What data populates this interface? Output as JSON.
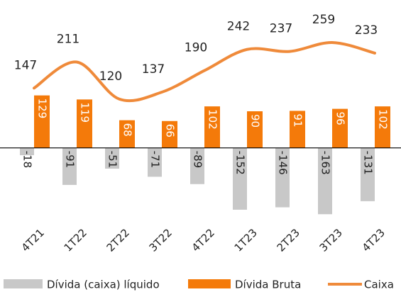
{
  "chart_data": {
    "type": "bar-line",
    "categories": [
      "4T21",
      "1T22",
      "2T22",
      "3T22",
      "4T22",
      "1T23",
      "2T23",
      "3T23",
      "4T23"
    ],
    "series": [
      {
        "name": "Dívida (caixa) líquido",
        "color": "#c8c8c8",
        "type": "bar",
        "values": [
          -18,
          -91,
          -51,
          -71,
          -89,
          -152,
          -146,
          -163,
          -131
        ]
      },
      {
        "name": "Dívida Bruta",
        "color": "#f47a0a",
        "type": "bar",
        "values": [
          129,
          119,
          68,
          66,
          102,
          90,
          91,
          96,
          102
        ]
      },
      {
        "name": "Caixa",
        "color": "#ef8a3a",
        "type": "line",
        "values": [
          147,
          211,
          120,
          137,
          190,
          242,
          237,
          259,
          233
        ]
      }
    ],
    "ylim": [
      -180,
      360
    ]
  }
}
